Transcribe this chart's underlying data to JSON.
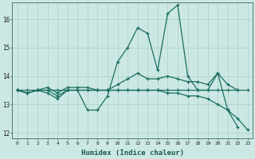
{
  "xlabel": "Humidex (Indice chaleur)",
  "background_color": "#cce8e4",
  "grid_color": "#b0d4cc",
  "line_color": "#1a6e60",
  "xlim": [
    -0.5,
    23.5
  ],
  "ylim": [
    11.8,
    16.6
  ],
  "yticks": [
    12,
    13,
    14,
    15,
    16
  ],
  "xticks": [
    0,
    1,
    2,
    3,
    4,
    5,
    6,
    7,
    8,
    9,
    10,
    11,
    12,
    13,
    14,
    15,
    16,
    17,
    18,
    19,
    20,
    21,
    22,
    23
  ],
  "series": [
    {
      "x": [
        0,
        1,
        2,
        3,
        4,
        5,
        6,
        7,
        8,
        9,
        10,
        11,
        12,
        13,
        14,
        15,
        16,
        17,
        18,
        19,
        20,
        21,
        22,
        23
      ],
      "y": [
        13.5,
        13.5,
        13.5,
        13.5,
        13.5,
        13.5,
        13.5,
        13.5,
        13.5,
        13.5,
        13.5,
        13.5,
        13.5,
        13.5,
        13.5,
        13.5,
        13.5,
        13.5,
        13.5,
        13.5,
        13.5,
        13.5,
        13.5,
        13.5
      ]
    },
    {
      "x": [
        0,
        1,
        2,
        3,
        4,
        5,
        6,
        7,
        8,
        9,
        10,
        11,
        12,
        13,
        14,
        15,
        16,
        17,
        18,
        19,
        20,
        21,
        22,
        23
      ],
      "y": [
        13.5,
        13.4,
        13.5,
        13.6,
        13.4,
        13.6,
        13.6,
        13.6,
        13.5,
        13.5,
        13.7,
        13.9,
        14.1,
        13.9,
        13.9,
        14.0,
        13.9,
        13.8,
        13.8,
        13.7,
        14.1,
        13.7,
        13.5,
        null
      ]
    },
    {
      "x": [
        0,
        1,
        2,
        3,
        4,
        5,
        6,
        7,
        8,
        9,
        10,
        11,
        12,
        13,
        14,
        15,
        16,
        17,
        18,
        19,
        20,
        21,
        22
      ],
      "y": [
        13.5,
        13.4,
        13.5,
        13.4,
        13.2,
        13.5,
        13.5,
        12.8,
        12.8,
        13.3,
        14.5,
        15.0,
        15.7,
        15.5,
        14.2,
        16.2,
        16.5,
        14.0,
        13.5,
        13.5,
        14.1,
        12.8,
        12.2
      ]
    },
    {
      "x": [
        0,
        1,
        2,
        3,
        4,
        5,
        6,
        7,
        8,
        9,
        10,
        11,
        12,
        13,
        14,
        15,
        16,
        17,
        18,
        19,
        20,
        21,
        22,
        23
      ],
      "y": [
        13.5,
        13.4,
        13.5,
        13.5,
        13.3,
        13.5,
        13.5,
        13.5,
        13.5,
        13.5,
        13.5,
        13.5,
        13.5,
        13.5,
        13.5,
        13.4,
        13.4,
        13.3,
        13.3,
        13.2,
        13.0,
        12.8,
        12.5,
        12.1
      ]
    }
  ]
}
